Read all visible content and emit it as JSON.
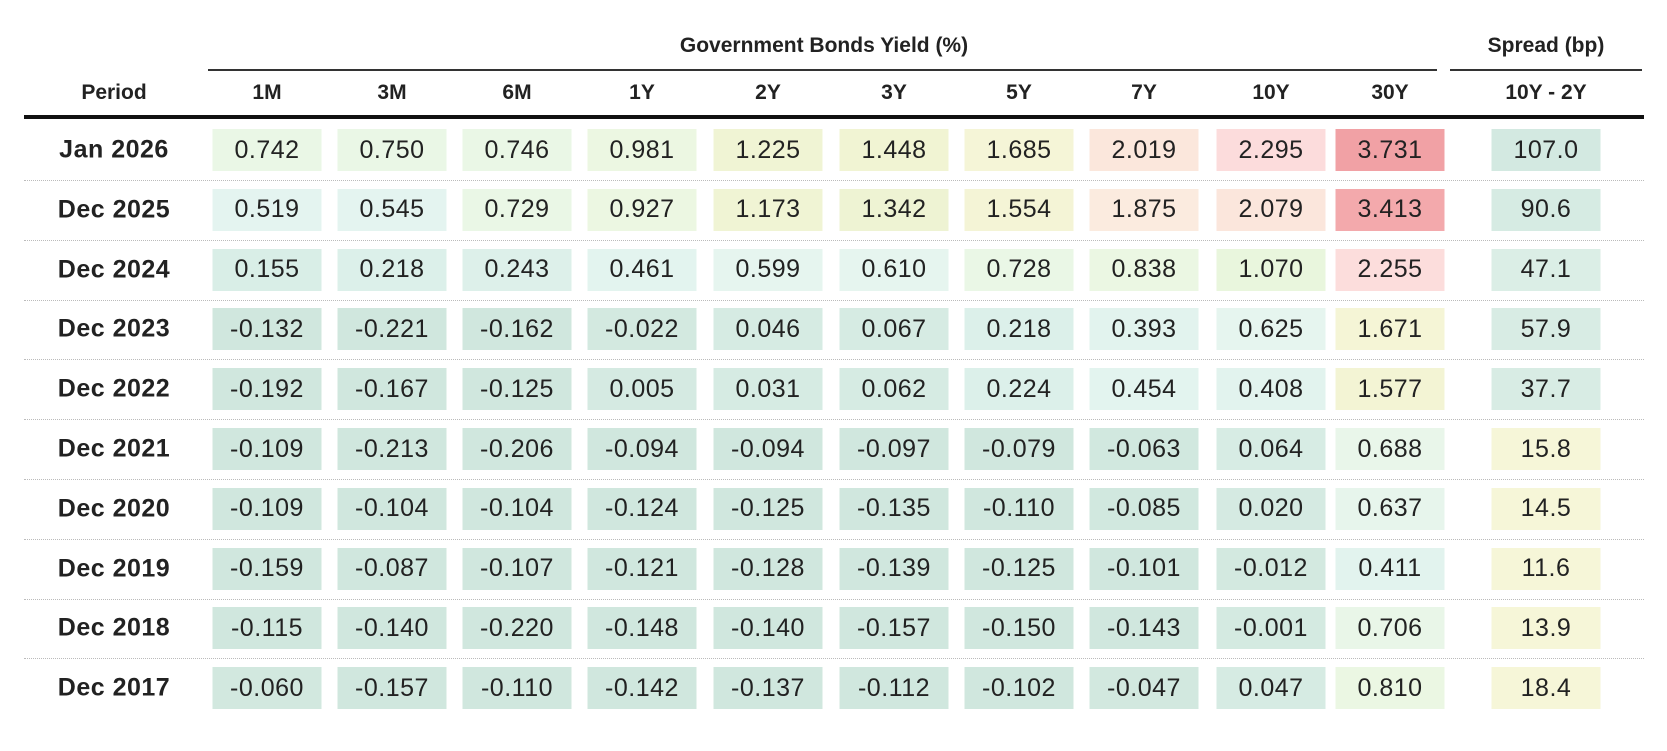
{
  "header": {
    "group_title": "Government Bonds Yield (%)",
    "spread_title": "Spread (bp)",
    "period_label": "Period",
    "columns": [
      "1M",
      "3M",
      "6M",
      "1Y",
      "2Y",
      "3Y",
      "5Y",
      "7Y",
      "10Y",
      "30Y"
    ],
    "spread_column": "10Y - 2Y"
  },
  "table": {
    "rows": [
      {
        "period": "Jan 2026",
        "yields": [
          "0.742",
          "0.750",
          "0.746",
          "0.981",
          "1.225",
          "1.448",
          "1.685",
          "2.019",
          "2.295",
          "3.731"
        ],
        "spread": "107.0",
        "colors": [
          "#eaf7e6",
          "#eaf7e6",
          "#eaf7e6",
          "#ecf7e2",
          "#f0f4d4",
          "#f1f4d3",
          "#f5f5d7",
          "#fbe7dc",
          "#fcdcdc",
          "#f1a1a5",
          "#d3e9e1"
        ]
      },
      {
        "period": "Dec 2025",
        "yields": [
          "0.519",
          "0.545",
          "0.729",
          "0.927",
          "1.173",
          "1.342",
          "1.554",
          "1.875",
          "2.079",
          "3.413"
        ],
        "spread": "90.6",
        "colors": [
          "#e4f4f0",
          "#e4f4f0",
          "#eaf7e6",
          "#ecf7e2",
          "#f0f4d4",
          "#eef3d3",
          "#f4f4d6",
          "#fbebdf",
          "#fbe6dc",
          "#f3a9ac",
          "#d6ebe3"
        ]
      },
      {
        "period": "Dec 2024",
        "yields": [
          "0.155",
          "0.218",
          "0.243",
          "0.461",
          "0.599",
          "0.610",
          "0.728",
          "0.838",
          "1.070",
          "2.255"
        ],
        "spread": "47.1",
        "colors": [
          "#d9eee7",
          "#dcf0ea",
          "#ddf0ea",
          "#e3f4ef",
          "#e6f5ef",
          "#e6f5ef",
          "#eaf7e6",
          "#ebf7e3",
          "#e9f6dd",
          "#fcdddc",
          "#dbeee6"
        ]
      },
      {
        "period": "Dec 2023",
        "yields": [
          "-0.132",
          "-0.221",
          "-0.162",
          "-0.022",
          "0.046",
          "0.067",
          "0.218",
          "0.393",
          "0.625",
          "1.671"
        ],
        "spread": "57.9",
        "colors": [
          "#d0e7de",
          "#d0e7de",
          "#d0e7de",
          "#d3e9e0",
          "#d6ebe3",
          "#d6ebe3",
          "#dcf0ea",
          "#e2f3ee",
          "#e6f5ef",
          "#f5f5d6",
          "#d8ece4"
        ]
      },
      {
        "period": "Dec 2022",
        "yields": [
          "-0.192",
          "-0.167",
          "-0.125",
          "0.005",
          "0.031",
          "0.062",
          "0.224",
          "0.454",
          "0.408",
          "1.577"
        ],
        "spread": "37.7",
        "colors": [
          "#d0e7de",
          "#d0e7de",
          "#d0e7de",
          "#d5eae2",
          "#d6ebe3",
          "#d6ebe3",
          "#dcf0ea",
          "#e3f4ef",
          "#e2f3ee",
          "#f3f4d4",
          "#d8ece4"
        ]
      },
      {
        "period": "Dec 2021",
        "yields": [
          "-0.109",
          "-0.213",
          "-0.206",
          "-0.094",
          "-0.094",
          "-0.097",
          "-0.079",
          "-0.063",
          "0.064",
          "0.688"
        ],
        "spread": "15.8",
        "colors": [
          "#d0e7de",
          "#d0e7de",
          "#d0e7de",
          "#d0e7de",
          "#d0e7de",
          "#d0e7de",
          "#d0e7de",
          "#d1e8df",
          "#d7ece4",
          "#e9f6ea",
          "#f6f6d8"
        ]
      },
      {
        "period": "Dec 2020",
        "yields": [
          "-0.109",
          "-0.104",
          "-0.104",
          "-0.124",
          "-0.125",
          "-0.135",
          "-0.110",
          "-0.085",
          "0.020",
          "0.637"
        ],
        "spread": "14.5",
        "colors": [
          "#d0e7de",
          "#d0e7de",
          "#d0e7de",
          "#d0e7de",
          "#d0e7de",
          "#d0e7de",
          "#d0e7de",
          "#d1e8df",
          "#d5eae2",
          "#e7f5ec",
          "#f6f6d8"
        ]
      },
      {
        "period": "Dec 2019",
        "yields": [
          "-0.159",
          "-0.087",
          "-0.107",
          "-0.121",
          "-0.128",
          "-0.139",
          "-0.125",
          "-0.101",
          "-0.012",
          "0.411"
        ],
        "spread": "11.6",
        "colors": [
          "#d0e7de",
          "#d0e7de",
          "#d0e7de",
          "#d0e7de",
          "#d0e7de",
          "#d0e7de",
          "#d0e7de",
          "#d0e7de",
          "#d3e9e0",
          "#e2f3ee",
          "#f6f6d8"
        ]
      },
      {
        "period": "Dec 2018",
        "yields": [
          "-0.115",
          "-0.140",
          "-0.220",
          "-0.148",
          "-0.140",
          "-0.157",
          "-0.150",
          "-0.143",
          "-0.001",
          "0.706"
        ],
        "spread": "13.9",
        "colors": [
          "#d0e7de",
          "#d0e7de",
          "#d0e7de",
          "#d0e7de",
          "#d0e7de",
          "#d0e7de",
          "#d0e7de",
          "#d0e7de",
          "#d4eae1",
          "#e9f6e8",
          "#f6f6d8"
        ]
      },
      {
        "period": "Dec 2017",
        "yields": [
          "-0.060",
          "-0.157",
          "-0.110",
          "-0.142",
          "-0.137",
          "-0.112",
          "-0.102",
          "-0.047",
          "0.047",
          "0.810"
        ],
        "spread": "18.4",
        "colors": [
          "#d2e8df",
          "#d0e7de",
          "#d0e7de",
          "#d0e7de",
          "#d0e7de",
          "#d0e7de",
          "#d0e7de",
          "#d2e8df",
          "#d6ebe3",
          "#ebf7e3",
          "#f6f6d8"
        ]
      }
    ]
  }
}
